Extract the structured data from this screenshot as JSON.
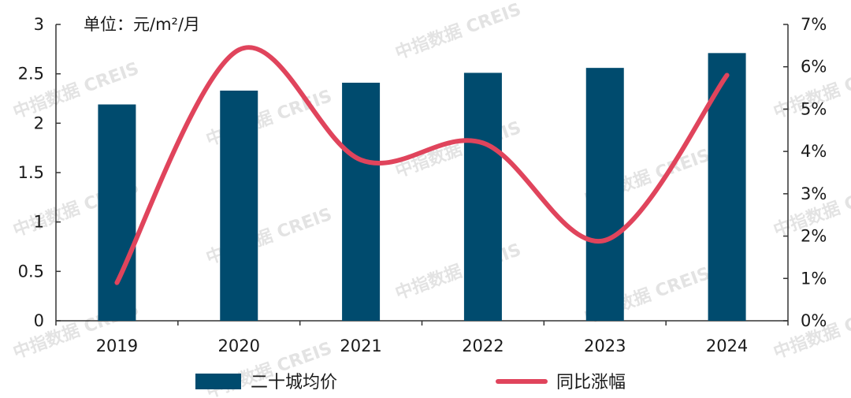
{
  "watermark": "中指数据 CREIS",
  "chart_data": {
    "type": "bar",
    "unit_label": "单位：元/m²/月",
    "categories": [
      "2019",
      "2020",
      "2021",
      "2022",
      "2023",
      "2024"
    ],
    "series": [
      {
        "name": "二十城均价",
        "type": "bar",
        "axis": "left",
        "color": "#004b6e",
        "values": [
          2.19,
          2.33,
          2.41,
          2.51,
          2.56,
          2.71
        ]
      },
      {
        "name": "同比涨幅",
        "type": "line",
        "axis": "right",
        "color": "#e0445c",
        "values": [
          0.9,
          6.4,
          3.8,
          4.2,
          1.9,
          5.8
        ]
      }
    ],
    "y_left": {
      "min": 0,
      "max": 3,
      "ticks": [
        "0",
        "0.5",
        "1",
        "1.5",
        "2",
        "2.5",
        "3"
      ]
    },
    "y_right": {
      "min": 0,
      "max": 7,
      "ticks": [
        "0%",
        "1%",
        "2%",
        "3%",
        "4%",
        "5%",
        "6%",
        "7%"
      ]
    },
    "grid": false,
    "legend_position": "bottom"
  }
}
